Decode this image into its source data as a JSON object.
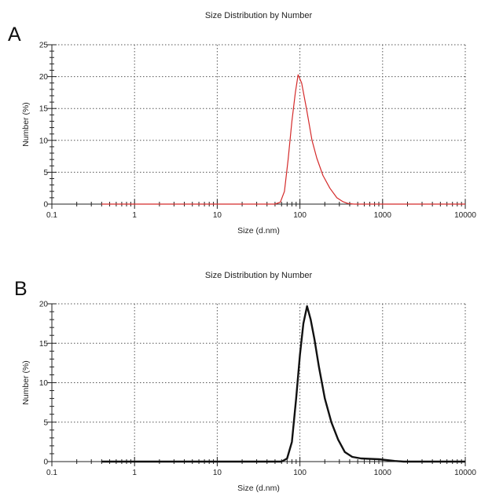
{
  "chart_data": [
    {
      "type": "line",
      "panel_label": "A",
      "title": "Size Distribution by Number",
      "xlabel": "Size (d.nm)",
      "ylabel": "Number (%)",
      "xscale": "log",
      "xlim": [
        0.1,
        10000
      ],
      "ylim": [
        0,
        25
      ],
      "x_ticks": [
        "0.1",
        "1",
        "10",
        "100",
        "1000",
        "10000"
      ],
      "y_ticks": [
        "0",
        "5",
        "10",
        "15",
        "20",
        "25"
      ],
      "grid": true,
      "line_color": "#d42a2a",
      "series": [
        {
          "x": [
            0.4,
            50,
            58,
            65,
            72,
            80,
            88,
            95,
            105,
            120,
            140,
            160,
            190,
            230,
            280,
            330,
            380,
            450,
            10000
          ],
          "values": [
            0,
            0,
            0.3,
            2,
            7,
            13,
            17.5,
            20.3,
            19,
            15,
            10,
            7.2,
            4.5,
            2.5,
            1,
            0.4,
            0.1,
            0,
            0
          ]
        }
      ]
    },
    {
      "type": "line",
      "panel_label": "B",
      "title": "Size Distribution by Number",
      "xlabel": "Size (d.nm)",
      "ylabel": "Number (%)",
      "xscale": "log",
      "xlim": [
        0.1,
        10000
      ],
      "ylim": [
        0,
        20
      ],
      "x_ticks": [
        "0.1",
        "1",
        "10",
        "100",
        "1000",
        "10000"
      ],
      "y_ticks": [
        "0",
        "5",
        "10",
        "15",
        "20"
      ],
      "grid": true,
      "line_color": "#111111",
      "series": [
        {
          "x": [
            0.4,
            60,
            70,
            80,
            90,
            100,
            110,
            122,
            135,
            150,
            170,
            200,
            240,
            290,
            350,
            430,
            550,
            700,
            900,
            1100,
            1400,
            1800,
            10000
          ],
          "values": [
            0,
            0,
            0.4,
            2.5,
            8,
            13.5,
            17.5,
            19.7,
            18,
            15.5,
            12,
            8,
            5,
            2.8,
            1.2,
            0.6,
            0.4,
            0.35,
            0.3,
            0.2,
            0.08,
            0,
            0
          ]
        }
      ]
    }
  ]
}
